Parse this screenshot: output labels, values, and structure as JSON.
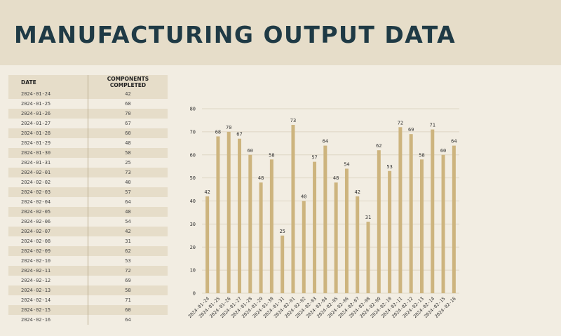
{
  "title": "MANUFACTURING OUTPUT DATA",
  "table": {
    "headers": [
      "DATE",
      "COMPONENTS COMPLETED"
    ],
    "rows": [
      [
        "2024-01-24",
        "42"
      ],
      [
        "2024-01-25",
        "68"
      ],
      [
        "2024-01-26",
        "70"
      ],
      [
        "2024-01-27",
        "67"
      ],
      [
        "2024-01-28",
        "60"
      ],
      [
        "2024-01-29",
        "48"
      ],
      [
        "2024-01-30",
        "58"
      ],
      [
        "2024-01-31",
        "25"
      ],
      [
        "2024-02-01",
        "73"
      ],
      [
        "2024-02-02",
        "40"
      ],
      [
        "2024-02-03",
        "57"
      ],
      [
        "2024-02-04",
        "64"
      ],
      [
        "2024-02-05",
        "48"
      ],
      [
        "2024-02-06",
        "54"
      ],
      [
        "2024-02-07",
        "42"
      ],
      [
        "2024-02-08",
        "31"
      ],
      [
        "2024-02-09",
        "62"
      ],
      [
        "2024-02-10",
        "53"
      ],
      [
        "2024-02-11",
        "72"
      ],
      [
        "2024-02-12",
        "69"
      ],
      [
        "2024-02-13",
        "58"
      ],
      [
        "2024-02-14",
        "71"
      ],
      [
        "2024-02-15",
        "60"
      ],
      [
        "2024-02-16",
        "64"
      ]
    ]
  },
  "chart_data": {
    "type": "bar",
    "categories": [
      "2024-01-24",
      "2024-01-25",
      "2024-01-26",
      "2024-01-27",
      "2024-01-28",
      "2024-01-29",
      "2024-01-30",
      "2024-01-31",
      "2024-02-01",
      "2024-02-02",
      "2024-02-03",
      "2024-02-04",
      "2024-02-05",
      "2024-02-06",
      "2024-02-07",
      "2024-02-08",
      "2024-02-09",
      "2024-02-10",
      "2024-02-11",
      "2024-02-12",
      "2024-02-13",
      "2024-02-14",
      "2024-02-15",
      "2024-02-16"
    ],
    "values": [
      42,
      68,
      70,
      67,
      60,
      48,
      58,
      25,
      73,
      40,
      57,
      64,
      48,
      54,
      42,
      31,
      62,
      53,
      72,
      69,
      58,
      71,
      60,
      64
    ],
    "title": "",
    "xlabel": "",
    "ylabel": "",
    "ylim": [
      0,
      80
    ],
    "yticks": [
      0,
      10,
      20,
      30,
      40,
      50,
      60,
      70,
      80
    ],
    "grid": true,
    "data_labels": true,
    "bar_color": "#cdb47e",
    "grid_color": "#ded6c4"
  }
}
